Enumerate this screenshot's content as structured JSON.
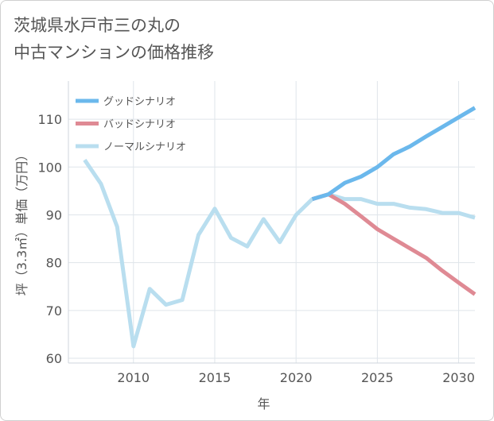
{
  "page": {
    "title_line1": "茨城県水戸市三の丸の",
    "title_line2": "中古マンションの価格推移"
  },
  "chart_data": {
    "type": "line",
    "ylabel": "坪（3.3㎡）単価（万円）",
    "xlabel": "年",
    "xlim": [
      2006,
      2031
    ],
    "ylim": [
      59,
      118
    ],
    "xticks": [
      2010,
      2015,
      2020,
      2025,
      2030
    ],
    "yticks": [
      60,
      70,
      80,
      90,
      100,
      110
    ],
    "grid": true,
    "legend_position": "top-left",
    "series": [
      {
        "name": "グッドシナリオ",
        "color": "#6bb8ec",
        "x": [
          2021,
          2022,
          2023,
          2024,
          2025,
          2026,
          2027,
          2028,
          2029,
          2030,
          2031
        ],
        "y": [
          93.3,
          94.3,
          96.7,
          98.0,
          100.0,
          102.7,
          104.3,
          106.4,
          108.4,
          110.4,
          112.4
        ]
      },
      {
        "name": "バッドシナリオ",
        "color": "#df8a94",
        "x": [
          2021,
          2022,
          2023,
          2024,
          2025,
          2026,
          2027,
          2028,
          2029,
          2030,
          2031
        ],
        "y": [
          93.3,
          94.3,
          92.3,
          89.7,
          87.0,
          85.0,
          83.0,
          81.0,
          78.3,
          75.8,
          73.4
        ]
      },
      {
        "name": "ノーマルシナリオ",
        "color": "#b9deef",
        "x": [
          2007,
          2008,
          2009,
          2010,
          2011,
          2012,
          2013,
          2014,
          2015,
          2016,
          2017,
          2018,
          2019,
          2020,
          2021,
          2022,
          2023,
          2024,
          2025,
          2026,
          2027,
          2028,
          2029,
          2030,
          2031
        ],
        "y": [
          101.5,
          96.5,
          87.5,
          62.5,
          74.5,
          71.2,
          72.2,
          85.8,
          91.3,
          85.2,
          83.4,
          89.1,
          84.3,
          90.0,
          93.3,
          94.3,
          93.3,
          93.3,
          92.3,
          92.3,
          91.5,
          91.2,
          90.4,
          90.4,
          89.4
        ]
      }
    ]
  }
}
